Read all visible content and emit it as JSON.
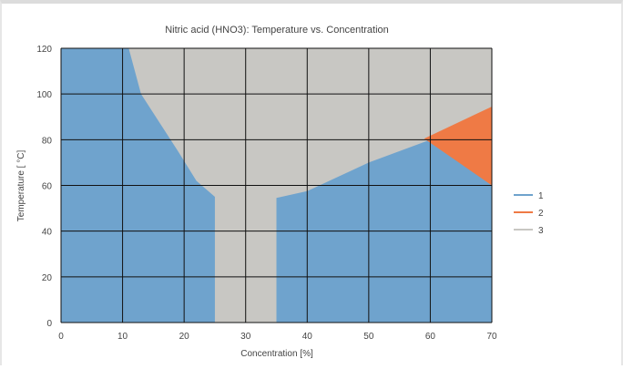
{
  "chart_data": {
    "type": "area",
    "title": "Nitric acid (HNO3):  Temperature vs. Concentration",
    "xlabel": "Concentration [%]",
    "ylabel": "Temperature [  °C]",
    "xlim": [
      0,
      70
    ],
    "ylim": [
      0,
      120
    ],
    "x_ticks": [
      0,
      10,
      20,
      30,
      40,
      50,
      60,
      70
    ],
    "y_ticks": [
      0,
      20,
      40,
      60,
      80,
      100,
      120
    ],
    "grid": true,
    "legend_position": "right",
    "series": [
      {
        "name": "1",
        "color": "#6fa3cd",
        "regions": [
          [
            [
              0,
              0
            ],
            [
              25,
              0
            ],
            [
              25,
              55
            ],
            [
              22,
              62
            ],
            [
              19,
              75
            ],
            [
              13,
              100
            ],
            [
              11,
              120
            ],
            [
              0,
              120
            ]
          ],
          [
            [
              35,
              0
            ],
            [
              70,
              0
            ],
            [
              70,
              60
            ],
            [
              60,
              80
            ],
            [
              50,
              70
            ],
            [
              40,
              57.5
            ],
            [
              35,
              54.5
            ]
          ]
        ]
      },
      {
        "name": "2",
        "color": "#ef7a45",
        "regions": [
          [
            [
              59,
              80.5
            ],
            [
              70,
              94.5
            ],
            [
              70,
              60
            ]
          ]
        ]
      },
      {
        "name": "3",
        "color": "#c8c7c3",
        "regions": [
          [
            [
              0,
              0
            ],
            [
              70,
              0
            ],
            [
              70,
              120
            ],
            [
              0,
              120
            ]
          ]
        ]
      }
    ]
  }
}
